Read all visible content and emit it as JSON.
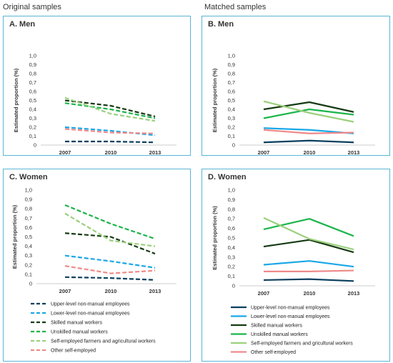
{
  "headings": {
    "left": "Original samples",
    "right": "Matched samples"
  },
  "series_styles": [
    {
      "name": "Upper-level non-manual employees",
      "color": "#0b3f5e"
    },
    {
      "name": "Lower-level non-manual employees",
      "color": "#1aa7e8"
    },
    {
      "name": "Skilled manual workers",
      "color": "#163b13"
    },
    {
      "name": "Unskilled manual workers",
      "color": "#1bb54a"
    },
    {
      "name": "Self-employed farmers and agricultural workers",
      "color": "#9bd07e"
    },
    {
      "name": "Other self-employed",
      "color": "#ee8a8a"
    }
  ],
  "legend_labels_left": [
    "Upper-level non-manual employees",
    "Lower-level non-manual employees",
    "Skilled manual workers",
    "Unskilled manual workers",
    "Self-employed farmers and agricultural workers",
    "Other self-employed"
  ],
  "legend_labels_right": [
    "Upper-level non-manual employees",
    "Lower-level non-manual employees",
    "Skilled manual workers",
    "Unskilled manual workers",
    "Self-employed farmers and gricultural workers",
    "Other self-employed"
  ],
  "chart_data": [
    {
      "type": "line",
      "title": "A. Men",
      "dashed": true,
      "ylabel": "Estimated proportion (%)",
      "ylim": [
        0,
        1
      ],
      "yticks": [
        "0",
        "0,1",
        "0,2",
        "0,3",
        "0,4",
        "0,5",
        "0,6",
        "0,7",
        "0,8",
        "0,9",
        "1,0"
      ],
      "categories": [
        "2007",
        "2010",
        "2013"
      ],
      "series": [
        {
          "values": [
            0.04,
            0.04,
            0.03
          ]
        },
        {
          "values": [
            0.2,
            0.16,
            0.11
          ]
        },
        {
          "values": [
            0.5,
            0.44,
            0.32
          ]
        },
        {
          "values": [
            0.47,
            0.4,
            0.3
          ]
        },
        {
          "values": [
            0.53,
            0.35,
            0.27
          ]
        },
        {
          "values": [
            0.18,
            0.14,
            0.13
          ]
        }
      ]
    },
    {
      "type": "line",
      "title": "B. Men",
      "dashed": false,
      "ylabel": "Estimated proportion (%)",
      "ylim": [
        0,
        1
      ],
      "yticks": [
        "0",
        "0,1",
        "0,2",
        "0,3",
        "0,4",
        "0,5",
        "0,6",
        "0,7",
        "0,8",
        "0,9",
        "1,0"
      ],
      "categories": [
        "2007",
        "2010",
        "2013"
      ],
      "series": [
        {
          "values": [
            0.03,
            0.05,
            0.03
          ]
        },
        {
          "values": [
            0.19,
            0.17,
            0.13
          ]
        },
        {
          "values": [
            0.4,
            0.48,
            0.37
          ]
        },
        {
          "values": [
            0.3,
            0.4,
            0.34
          ]
        },
        {
          "values": [
            0.49,
            0.36,
            0.26
          ]
        },
        {
          "values": [
            0.17,
            0.13,
            0.14
          ]
        }
      ]
    },
    {
      "type": "line",
      "title": "C. Women",
      "dashed": true,
      "ylabel": "Estimated proportion (%)",
      "ylim": [
        0,
        1
      ],
      "yticks": [
        "0",
        "0,1",
        "0,2",
        "0,3",
        "0,4",
        "0,5",
        "0,6",
        "0,7",
        "0,8",
        "0,9",
        "1,0"
      ],
      "categories": [
        "2007",
        "2010",
        "2013"
      ],
      "series": [
        {
          "values": [
            0.07,
            0.06,
            0.04
          ]
        },
        {
          "values": [
            0.3,
            0.24,
            0.17
          ]
        },
        {
          "values": [
            0.54,
            0.5,
            0.32
          ]
        },
        {
          "values": [
            0.84,
            0.64,
            0.48
          ]
        },
        {
          "values": [
            0.75,
            0.46,
            0.4
          ]
        },
        {
          "values": [
            0.19,
            0.11,
            0.14
          ]
        }
      ]
    },
    {
      "type": "line",
      "title": "D. Women",
      "dashed": false,
      "ylabel": "Estimated proportion (%)",
      "ylim": [
        0,
        1
      ],
      "yticks": [
        "0",
        "0,1",
        "0,2",
        "0,3",
        "0,4",
        "0,5",
        "0,6",
        "0,7",
        "0,8",
        "0,9",
        "1,0"
      ],
      "categories": [
        "2007",
        "2010",
        "2013"
      ],
      "series": [
        {
          "values": [
            0.06,
            0.07,
            0.05
          ]
        },
        {
          "values": [
            0.22,
            0.26,
            0.2
          ]
        },
        {
          "values": [
            0.41,
            0.48,
            0.35
          ]
        },
        {
          "values": [
            0.59,
            0.7,
            0.52
          ]
        },
        {
          "values": [
            0.71,
            0.49,
            0.38
          ]
        },
        {
          "values": [
            0.15,
            0.15,
            0.16
          ]
        }
      ]
    }
  ]
}
